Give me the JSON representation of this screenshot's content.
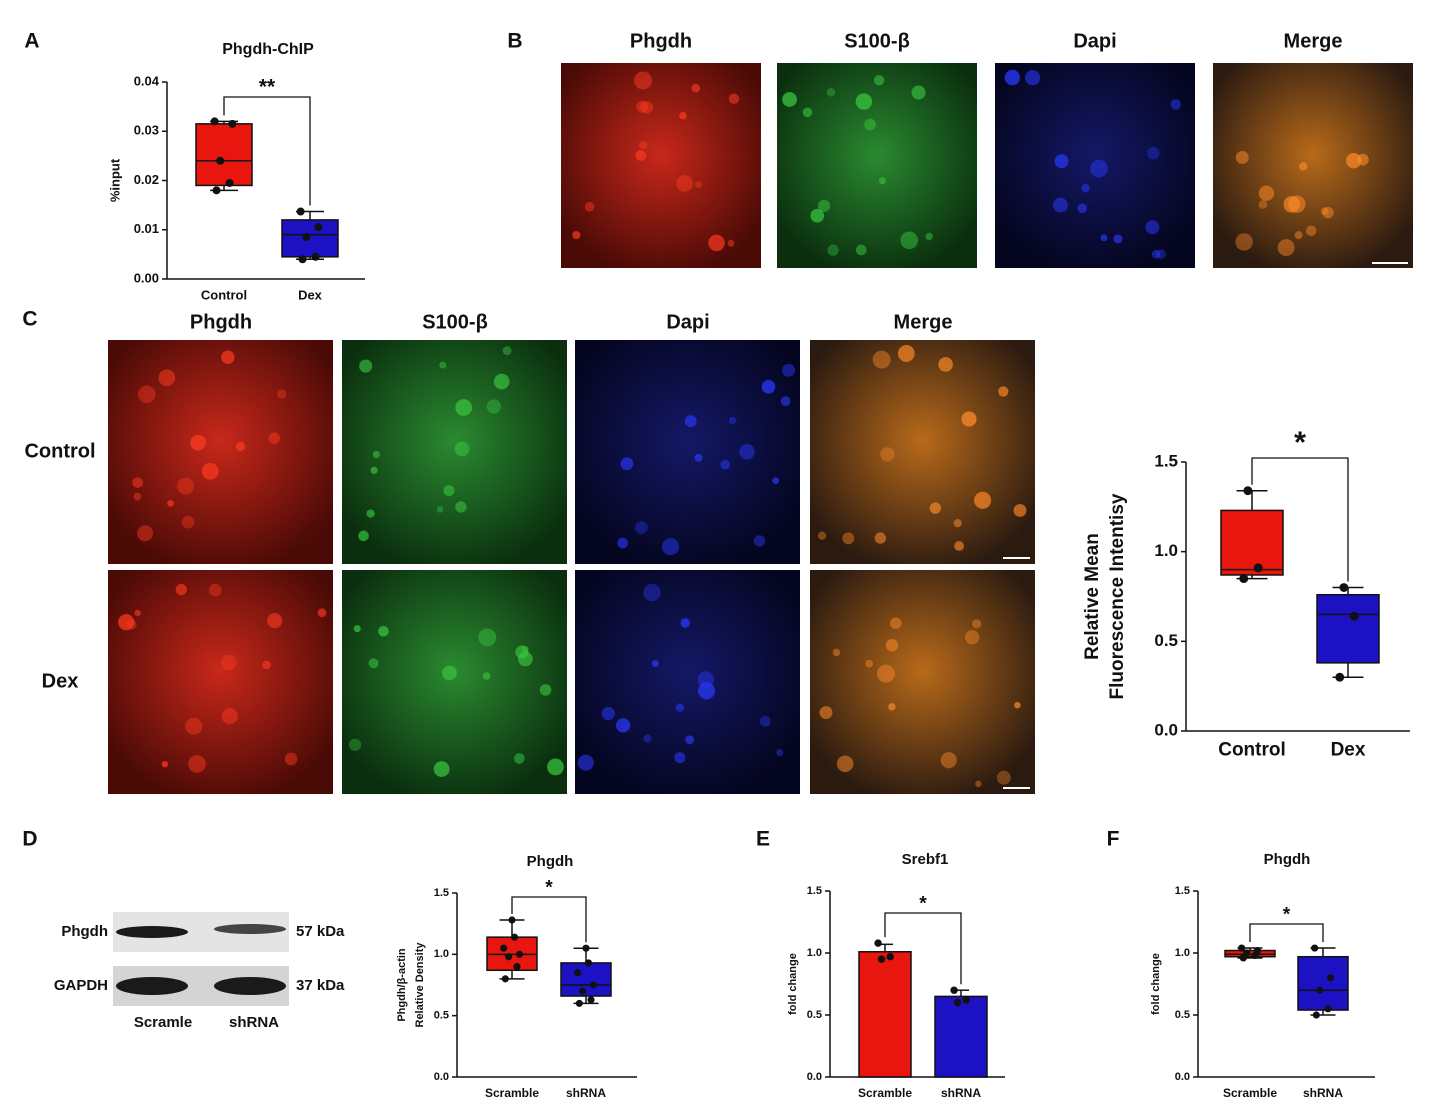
{
  "panel_letters": [
    "A",
    "B",
    "C",
    "D",
    "E",
    "F"
  ],
  "figure_b": {
    "channels": [
      "Phgdh",
      "S100-β",
      "Dapi",
      "Merge"
    ]
  },
  "figure_c": {
    "channels": [
      "Phgdh",
      "S100-β",
      "Dapi",
      "Merge"
    ],
    "rows": [
      "Control",
      "Dex"
    ]
  },
  "western_blot": {
    "bands": [
      {
        "name": "Phgdh",
        "size": "57 kDa"
      },
      {
        "name": "GAPDH",
        "size": "37 kDa"
      }
    ],
    "lanes": [
      "Scramle",
      "shRNA"
    ]
  },
  "chart_data": [
    {
      "type": "box",
      "title": "Phgdh-ChIP",
      "ylabel": [
        "%input"
      ],
      "categories": [
        "Control",
        "Dex"
      ],
      "ylim": [
        0,
        0.04
      ],
      "yticks": [
        {
          "value": 0,
          "label": "0.00"
        },
        {
          "value": 0.01,
          "label": "0.01"
        },
        {
          "value": 0.02,
          "label": "0.02"
        },
        {
          "value": 0.03,
          "label": "0.03"
        },
        {
          "value": 0.04,
          "label": "0.04"
        }
      ],
      "significance": "**",
      "boxes": [
        {
          "color": "#e8160f",
          "min": 0.018,
          "q1": 0.019,
          "median": 0.024,
          "q3": 0.0315,
          "max": 0.032,
          "points": [
            0.018,
            0.0195,
            0.024,
            0.0315,
            0.032
          ]
        },
        {
          "color": "#1c12c4",
          "min": 0.004,
          "q1": 0.0045,
          "median": 0.009,
          "q3": 0.012,
          "max": 0.0137,
          "points": [
            0.004,
            0.0045,
            0.0085,
            0.0105,
            0.0137
          ]
        }
      ]
    },
    {
      "type": "box",
      "ylabel": [
        "Relative Mean",
        "Fluorescence Intentisy"
      ],
      "categories": [
        "Control",
        "Dex"
      ],
      "ylim": [
        0,
        1.5
      ],
      "yticks": [
        {
          "value": 0,
          "label": "0.0"
        },
        0.5,
        {
          "value": 1,
          "label": "1.0"
        },
        1.5
      ],
      "significance": "*",
      "boxes": [
        {
          "color": "#e8160f",
          "min": 0.85,
          "q1": 0.87,
          "median": 0.9,
          "q3": 1.23,
          "max": 1.34,
          "points": [
            0.85,
            0.91,
            1.34
          ]
        },
        {
          "color": "#1c12c4",
          "min": 0.3,
          "q1": 0.38,
          "median": 0.65,
          "q3": 0.76,
          "max": 0.8,
          "points": [
            0.3,
            0.64,
            0.8
          ]
        }
      ]
    },
    {
      "type": "box",
      "title": "Phgdh",
      "ylabel": [
        "Phgdh/β-actin",
        "Relative  Density"
      ],
      "categories": [
        "Scramble",
        "shRNA"
      ],
      "ylim": [
        0,
        1.5
      ],
      "yticks": [
        {
          "value": 0,
          "label": "0.0"
        },
        0.5,
        {
          "value": 1,
          "label": "1.0"
        },
        1.5
      ],
      "significance": "*",
      "boxes": [
        {
          "color": "#e8160f",
          "min": 0.8,
          "q1": 0.87,
          "median": 1.0,
          "q3": 1.14,
          "max": 1.28,
          "points": [
            0.8,
            0.9,
            0.98,
            1.0,
            1.05,
            1.14,
            1.28
          ]
        },
        {
          "color": "#1c12c4",
          "min": 0.6,
          "q1": 0.66,
          "median": 0.75,
          "q3": 0.93,
          "max": 1.05,
          "points": [
            0.6,
            0.63,
            0.7,
            0.75,
            0.85,
            0.93,
            1.05
          ]
        }
      ]
    },
    {
      "type": "bar",
      "title": "Srebf1",
      "ylabel": [
        "fold change"
      ],
      "categories": [
        "Scramble",
        "shRNA"
      ],
      "ylim": [
        0,
        1.5
      ],
      "yticks": [
        {
          "value": 0,
          "label": "0.0"
        },
        0.5,
        {
          "value": 1,
          "label": "1.0"
        },
        1.5
      ],
      "significance": "*",
      "values": [
        1.01,
        0.65
      ],
      "errors": [
        0.06,
        0.05
      ],
      "colors": [
        "#e8160f",
        "#1c12c4"
      ],
      "points": [
        [
          1.08,
          0.97,
          0.95
        ],
        [
          0.7,
          0.62,
          0.6
        ]
      ]
    },
    {
      "type": "box",
      "title": "Phgdh",
      "ylabel": [
        "fold change"
      ],
      "categories": [
        "Scramble",
        "shRNA"
      ],
      "ylim": [
        0,
        1.5
      ],
      "yticks": [
        {
          "value": 0,
          "label": "0.0"
        },
        0.5,
        {
          "value": 1,
          "label": "1.0"
        },
        1.5
      ],
      "significance": "*",
      "boxes": [
        {
          "color": "#e8160f",
          "min": 0.96,
          "q1": 0.97,
          "median": 0.99,
          "q3": 1.02,
          "max": 1.04,
          "points": [
            0.96,
            0.98,
            1.0,
            1.02,
            1.04
          ]
        },
        {
          "color": "#1c12c4",
          "min": 0.5,
          "q1": 0.54,
          "median": 0.7,
          "q3": 0.97,
          "max": 1.04,
          "points": [
            0.5,
            0.55,
            0.7,
            0.8,
            1.04
          ]
        }
      ]
    }
  ]
}
